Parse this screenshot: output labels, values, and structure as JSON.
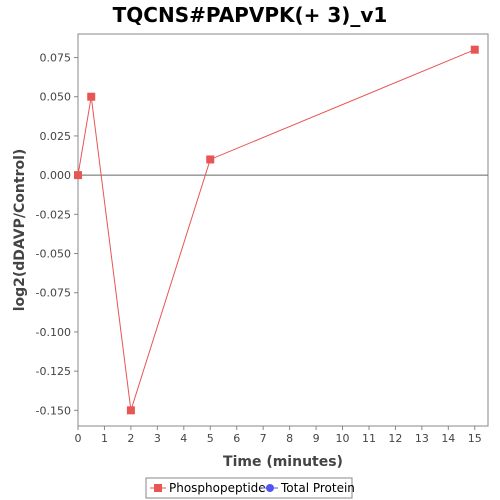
{
  "chart_data": {
    "type": "line",
    "title": "TQCNS#PAPVPK(+ 3)_v1",
    "xlabel": "Time (minutes)",
    "ylabel": "log2(dDAVP/Control)",
    "xlim": [
      0,
      15.5
    ],
    "ylim": [
      -0.16,
      0.09
    ],
    "x_ticks": [
      0,
      1,
      2,
      3,
      4,
      5,
      6,
      7,
      8,
      9,
      10,
      11,
      12,
      13,
      14,
      15
    ],
    "y_ticks": [
      -0.15,
      -0.125,
      -0.1,
      -0.075,
      -0.05,
      -0.025,
      0,
      0.025,
      0.05,
      0.075
    ],
    "y_tick_labels": [
      "-0.150",
      "-0.125",
      "-0.100",
      "-0.075",
      "-0.050",
      "-0.025",
      "0.000",
      "0.025",
      "0.050",
      "0.075"
    ],
    "grid": false,
    "legend_position": "bottom-center",
    "zero_line": true,
    "series": [
      {
        "name": "Phosphopeptide",
        "color": "#e85555",
        "marker": "square",
        "x": [
          0,
          0.5,
          2,
          5,
          15
        ],
        "y": [
          0,
          0.05,
          -0.15,
          0.01,
          0.08
        ]
      },
      {
        "name": "Total Protein",
        "color": "#5555ee",
        "marker": "circle",
        "x": [],
        "y": []
      }
    ]
  }
}
